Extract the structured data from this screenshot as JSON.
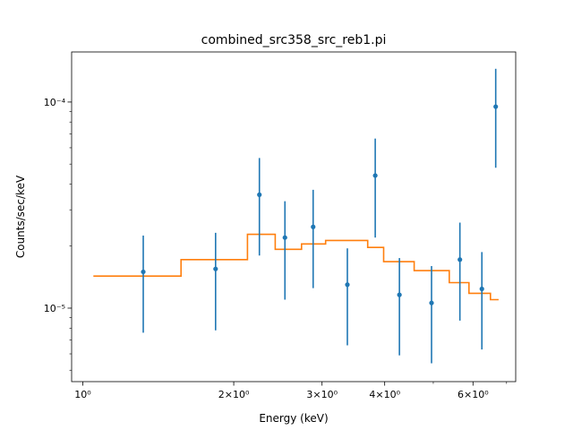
{
  "chart_data": {
    "type": "scatter",
    "title": "combined_src358_src_reb1.pi",
    "xlabel": "Energy (keV)",
    "ylabel": "Counts/sec/keV",
    "xscale": "log",
    "yscale": "log",
    "xlim": [
      0.95,
      7.3
    ],
    "ylim": [
      4.4e-06,
      0.000175
    ],
    "grid": false,
    "x_ticks": [
      {
        "value": 1,
        "label": "10⁰"
      },
      {
        "value": 2,
        "label": "2×10⁰"
      },
      {
        "value": 3,
        "label": "3×10⁰"
      },
      {
        "value": 4,
        "label": "4×10⁰"
      },
      {
        "value": 6,
        "label": "6×10⁰"
      }
    ],
    "x_minor_ticks": [
      5,
      7
    ],
    "y_ticks": [
      {
        "value": 1e-05,
        "label": "10⁻⁵"
      },
      {
        "value": 0.0001,
        "label": "10⁻⁴"
      }
    ],
    "y_minor_ticks": [
      5e-06,
      6e-06,
      7e-06,
      8e-06,
      9e-06,
      2e-05,
      3e-05,
      4e-05,
      5e-05,
      6e-05,
      7e-05,
      8e-05,
      9e-05
    ],
    "series": [
      {
        "kind": "errorbar",
        "color": "#1f77b4",
        "points": [
          {
            "x": 1.32,
            "y": 1.5e-05,
            "ylo": 7.6e-06,
            "yhi": 2.25e-05
          },
          {
            "x": 1.84,
            "y": 1.55e-05,
            "ylo": 7.8e-06,
            "yhi": 2.32e-05
          },
          {
            "x": 2.25,
            "y": 3.55e-05,
            "ylo": 1.8e-05,
            "yhi": 5.35e-05
          },
          {
            "x": 2.53,
            "y": 2.2e-05,
            "ylo": 1.1e-05,
            "yhi": 3.3e-05
          },
          {
            "x": 2.88,
            "y": 2.48e-05,
            "ylo": 1.25e-05,
            "yhi": 3.75e-05
          },
          {
            "x": 3.37,
            "y": 1.3e-05,
            "ylo": 6.6e-06,
            "yhi": 1.95e-05
          },
          {
            "x": 3.83,
            "y": 4.4e-05,
            "ylo": 2.2e-05,
            "yhi": 6.65e-05
          },
          {
            "x": 4.28,
            "y": 1.16e-05,
            "ylo": 5.9e-06,
            "yhi": 1.75e-05
          },
          {
            "x": 4.96,
            "y": 1.06e-05,
            "ylo": 5.4e-06,
            "yhi": 1.6e-05
          },
          {
            "x": 5.65,
            "y": 1.72e-05,
            "ylo": 8.7e-06,
            "yhi": 2.6e-05
          },
          {
            "x": 6.25,
            "y": 1.24e-05,
            "ylo": 6.3e-06,
            "yhi": 1.87e-05
          },
          {
            "x": 6.66,
            "y": 9.5e-05,
            "ylo": 4.8e-05,
            "yhi": 0.000145
          }
        ]
      },
      {
        "kind": "step",
        "color": "#ff7f0e",
        "segments": [
          {
            "x0": 1.05,
            "x1": 1.57,
            "y": 1.43e-05
          },
          {
            "x0": 1.57,
            "x1": 2.13,
            "y": 1.72e-05
          },
          {
            "x0": 2.13,
            "x1": 2.42,
            "y": 2.28e-05
          },
          {
            "x0": 2.42,
            "x1": 2.73,
            "y": 1.93e-05
          },
          {
            "x0": 2.73,
            "x1": 3.05,
            "y": 2.05e-05
          },
          {
            "x0": 3.05,
            "x1": 3.7,
            "y": 2.13e-05
          },
          {
            "x0": 3.7,
            "x1": 3.98,
            "y": 1.97e-05
          },
          {
            "x0": 3.98,
            "x1": 4.58,
            "y": 1.68e-05
          },
          {
            "x0": 4.58,
            "x1": 5.38,
            "y": 1.52e-05
          },
          {
            "x0": 5.38,
            "x1": 5.89,
            "y": 1.33e-05
          },
          {
            "x0": 5.89,
            "x1": 6.5,
            "y": 1.18e-05
          },
          {
            "x0": 6.5,
            "x1": 6.75,
            "y": 1.1e-05
          }
        ]
      }
    ]
  }
}
